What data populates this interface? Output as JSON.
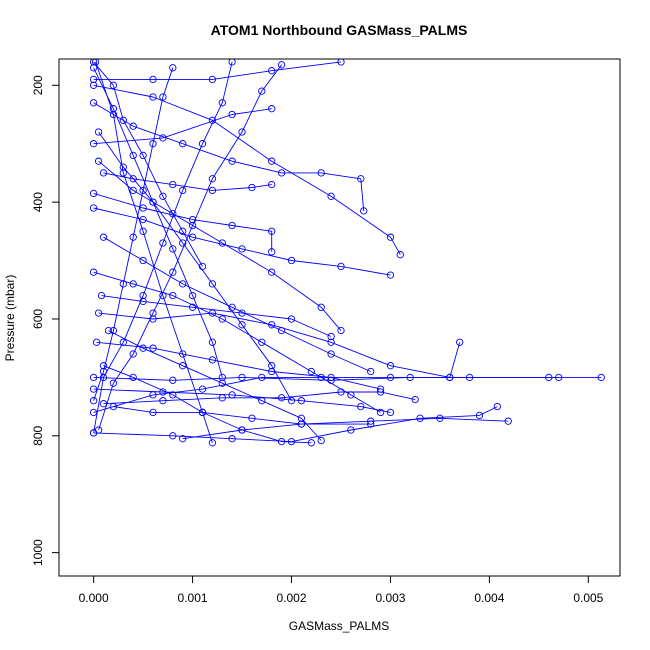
{
  "chart_data": {
    "type": "line",
    "title": "ATOM1 Northbound GASMass_PALMS",
    "xlabel": "GASMass_PALMS",
    "ylabel": "Pressure (mbar)",
    "xlim": [
      -0.00035,
      0.00532
    ],
    "ylim": [
      1040,
      155
    ],
    "y_reversed": true,
    "grid": false,
    "legend": "none",
    "series_color": "#0000ff",
    "x_ticks": [
      0.0,
      0.001,
      0.002,
      0.003,
      0.004,
      0.005
    ],
    "x_tick_labels": [
      "0.000",
      "0.001",
      "0.002",
      "0.003",
      "0.004",
      "0.005"
    ],
    "y_ticks": [
      200,
      400,
      600,
      800,
      1000
    ],
    "y_tick_labels": [
      "200",
      "400",
      "600",
      "800",
      "1000"
    ],
    "series": [
      {
        "points": [
          [
            0.0,
            795
          ],
          [
            0.0001,
            700
          ],
          [
            0.0003,
            640
          ],
          [
            0.0005,
            560
          ],
          [
            0.0007,
            470
          ],
          [
            0.0009,
            380
          ],
          [
            0.0011,
            300
          ],
          [
            0.0013,
            230
          ],
          [
            0.0014,
            160
          ]
        ]
      },
      {
        "points": [
          [
            5e-05,
            790
          ],
          [
            0.0002,
            710
          ],
          [
            0.0004,
            660
          ],
          [
            0.0006,
            590
          ],
          [
            0.0008,
            520
          ],
          [
            0.001,
            440
          ],
          [
            0.0012,
            360
          ],
          [
            0.0015,
            280
          ],
          [
            0.0017,
            210
          ],
          [
            0.0019,
            165
          ]
        ]
      },
      {
        "points": [
          [
            0.0,
            740
          ],
          [
            0.0001,
            690
          ],
          [
            0.0002,
            620
          ],
          [
            0.0003,
            540
          ],
          [
            0.0004,
            460
          ],
          [
            0.0005,
            380
          ],
          [
            0.0006,
            300
          ],
          [
            0.0007,
            220
          ],
          [
            0.0008,
            170
          ]
        ]
      },
      {
        "points": [
          [
            0.0,
            760
          ],
          [
            0.0006,
            730
          ],
          [
            0.0011,
            720
          ],
          [
            0.0017,
            700
          ],
          [
            0.0023,
            700
          ],
          [
            0.003,
            700
          ],
          [
            0.0036,
            700
          ],
          [
            0.0046,
            700
          ],
          [
            0.00513,
            700
          ]
        ]
      },
      {
        "points": [
          [
            0.0,
            700
          ],
          [
            0.0008,
            705
          ],
          [
            0.0015,
            700
          ],
          [
            0.0024,
            705
          ],
          [
            0.0032,
            700
          ],
          [
            0.0038,
            700
          ],
          [
            0.0047,
            700
          ]
        ]
      },
      {
        "points": [
          [
            0.0009,
            805
          ],
          [
            0.0015,
            790
          ],
          [
            0.0021,
            780
          ],
          [
            0.0028,
            775
          ],
          [
            0.0035,
            770
          ],
          [
            0.00419,
            775
          ]
        ]
      },
      {
        "points": [
          [
            0.0,
            795
          ],
          [
            0.0008,
            800
          ],
          [
            0.0014,
            805
          ],
          [
            0.002,
            810
          ],
          [
            0.0026,
            790
          ],
          [
            0.0033,
            770
          ],
          [
            0.0039,
            765
          ],
          [
            0.00408,
            750
          ]
        ]
      },
      {
        "points": [
          [
            0.0001,
            745
          ],
          [
            0.0007,
            740
          ],
          [
            0.0013,
            735
          ],
          [
            0.0019,
            735
          ],
          [
            0.0025,
            725
          ],
          [
            0.0029,
            725
          ],
          [
            0.00325,
            738
          ]
        ]
      },
      {
        "points": [
          [
            5e-05,
            590
          ],
          [
            0.0006,
            600
          ],
          [
            0.0012,
            590
          ],
          [
            0.0018,
            610
          ],
          [
            0.0024,
            640
          ],
          [
            0.003,
            680
          ],
          [
            0.0036,
            700
          ],
          [
            0.0037,
            640
          ]
        ]
      },
      {
        "points": [
          [
            0.0,
            410
          ],
          [
            0.0005,
            430
          ],
          [
            0.001,
            460
          ],
          [
            0.0015,
            480
          ],
          [
            0.002,
            500
          ],
          [
            0.0025,
            510
          ],
          [
            0.003,
            525
          ]
        ]
      },
      {
        "points": [
          [
            0.0,
            230
          ],
          [
            0.0004,
            270
          ],
          [
            0.0009,
            300
          ],
          [
            0.0014,
            330
          ],
          [
            0.0019,
            350
          ],
          [
            0.0023,
            350
          ],
          [
            0.0027,
            360
          ],
          [
            0.00273,
            415
          ]
        ]
      },
      {
        "points": [
          [
            0.0,
            200
          ],
          [
            0.0006,
            220
          ],
          [
            0.0012,
            260
          ],
          [
            0.0018,
            330
          ],
          [
            0.0024,
            390
          ],
          [
            0.003,
            460
          ],
          [
            0.0031,
            490
          ]
        ]
      },
      {
        "points": [
          [
            5e-05,
            330
          ],
          [
            0.0004,
            380
          ],
          [
            0.0008,
            420
          ],
          [
            0.0013,
            470
          ],
          [
            0.0018,
            520
          ],
          [
            0.0023,
            580
          ],
          [
            0.0025,
            620
          ]
        ]
      },
      {
        "points": [
          [
            0.0001,
            460
          ],
          [
            0.0005,
            500
          ],
          [
            0.0009,
            540
          ],
          [
            0.0014,
            580
          ],
          [
            0.0019,
            620
          ],
          [
            0.0024,
            660
          ],
          [
            0.0028,
            690
          ]
        ]
      },
      {
        "points": [
          [
            0.0,
            520
          ],
          [
            0.0004,
            540
          ],
          [
            0.0008,
            560
          ],
          [
            0.0013,
            600
          ],
          [
            0.0017,
            640
          ],
          [
            0.0022,
            690
          ],
          [
            0.0026,
            730
          ],
          [
            0.0029,
            760
          ]
        ]
      },
      {
        "points": [
          [
            0.00015,
            620
          ],
          [
            0.0005,
            650
          ],
          [
            0.0009,
            680
          ],
          [
            0.0013,
            710
          ],
          [
            0.0017,
            740
          ],
          [
            0.0021,
            770
          ],
          [
            0.0023,
            808
          ]
        ]
      },
      {
        "points": [
          [
            0.0001,
            680
          ],
          [
            0.0004,
            700
          ],
          [
            0.0008,
            730
          ],
          [
            0.0011,
            760
          ],
          [
            0.0015,
            790
          ],
          [
            0.0019,
            810
          ],
          [
            0.0022,
            812
          ]
        ]
      },
      {
        "points": [
          [
            5e-05,
            280
          ],
          [
            0.0003,
            340
          ],
          [
            0.0006,
            400
          ],
          [
            0.0009,
            470
          ],
          [
            0.0012,
            540
          ],
          [
            0.0015,
            610
          ],
          [
            0.0018,
            680
          ],
          [
            0.002,
            740
          ]
        ]
      },
      {
        "points": [
          [
            0.0,
            170
          ],
          [
            0.0002,
            240
          ],
          [
            0.0004,
            320
          ],
          [
            0.0006,
            400
          ],
          [
            0.0008,
            480
          ],
          [
            0.001,
            560
          ],
          [
            0.0012,
            640
          ],
          [
            0.0013,
            700
          ]
        ]
      },
      {
        "points": [
          [
            2e-05,
            160
          ],
          [
            0.0002,
            250
          ],
          [
            0.0003,
            350
          ],
          [
            0.0005,
            450
          ],
          [
            0.0007,
            560
          ],
          [
            0.0009,
            660
          ],
          [
            0.0011,
            760
          ],
          [
            0.0012,
            812
          ]
        ]
      },
      {
        "points": [
          [
            0.0,
            300
          ],
          [
            0.0007,
            290
          ],
          [
            0.0014,
            250
          ],
          [
            0.0018,
            240
          ]
        ]
      },
      {
        "points": [
          [
            0.0,
            190
          ],
          [
            0.0006,
            190
          ],
          [
            0.0012,
            190
          ],
          [
            0.0018,
            175
          ],
          [
            0.0025,
            160
          ]
        ]
      },
      {
        "points": [
          [
            0.0,
            385
          ],
          [
            0.0005,
            410
          ],
          [
            0.001,
            430
          ],
          [
            0.0014,
            440
          ],
          [
            0.0018,
            450
          ],
          [
            0.0018,
            485
          ]
        ]
      },
      {
        "points": [
          [
            8e-05,
            560
          ],
          [
            0.0005,
            570
          ],
          [
            0.001,
            580
          ],
          [
            0.0015,
            590
          ],
          [
            0.002,
            600
          ],
          [
            0.0024,
            630
          ]
        ]
      },
      {
        "points": [
          [
            3e-05,
            640
          ],
          [
            0.0006,
            650
          ],
          [
            0.0012,
            670
          ],
          [
            0.0018,
            690
          ],
          [
            0.0024,
            700
          ],
          [
            0.0029,
            720
          ]
        ]
      },
      {
        "points": [
          [
            0.0,
            720
          ],
          [
            0.0007,
            725
          ],
          [
            0.0014,
            730
          ],
          [
            0.0021,
            740
          ],
          [
            0.0027,
            750
          ],
          [
            0.003,
            760
          ]
        ]
      },
      {
        "points": [
          [
            0.0002,
            750
          ],
          [
            0.0006,
            760
          ],
          [
            0.0011,
            760
          ],
          [
            0.0016,
            770
          ],
          [
            0.0021,
            780
          ],
          [
            0.0028,
            780
          ]
        ]
      },
      {
        "points": [
          [
            0.0,
            160
          ],
          [
            0.0002,
            200
          ],
          [
            0.0003,
            260
          ],
          [
            0.0005,
            320
          ],
          [
            0.0007,
            390
          ],
          [
            0.0009,
            450
          ],
          [
            0.0011,
            510
          ]
        ]
      },
      {
        "points": [
          [
            0.0001,
            350
          ],
          [
            0.0004,
            360
          ],
          [
            0.0008,
            370
          ],
          [
            0.0012,
            380
          ],
          [
            0.0016,
            375
          ],
          [
            0.0018,
            370
          ]
        ]
      }
    ]
  }
}
